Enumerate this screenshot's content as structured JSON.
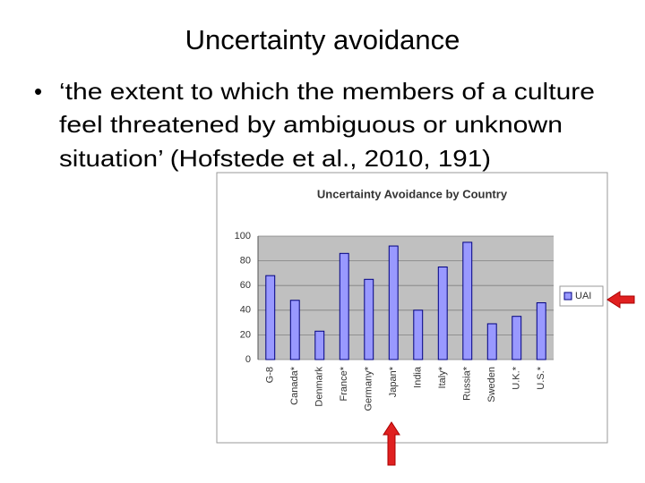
{
  "slide": {
    "title": "Uncertainty avoidance",
    "bullet_lines": [
      "‘the extent to which the members of a culture",
      "feel threatened by ambiguous  or unknown",
      "situation’ (Hofstede et al., 2010, 191)"
    ]
  },
  "chart_data": {
    "type": "bar",
    "title": "Uncertainty Avoidance by Country",
    "categories": [
      "G-8",
      "Canada*",
      "Denmark",
      "France*",
      "Germany*",
      "Japan*",
      "India",
      "Italy*",
      "Russia*",
      "Sweden",
      "U.K.*",
      "U.S.*"
    ],
    "series": [
      {
        "name": "UAI",
        "color": "#9999ff",
        "values": [
          68,
          48,
          23,
          86,
          65,
          92,
          40,
          75,
          95,
          29,
          35,
          46
        ]
      }
    ],
    "ylim": [
      0,
      100
    ],
    "yticks": [
      0,
      20,
      40,
      60,
      80,
      100
    ],
    "grid": true,
    "legend": "right"
  }
}
